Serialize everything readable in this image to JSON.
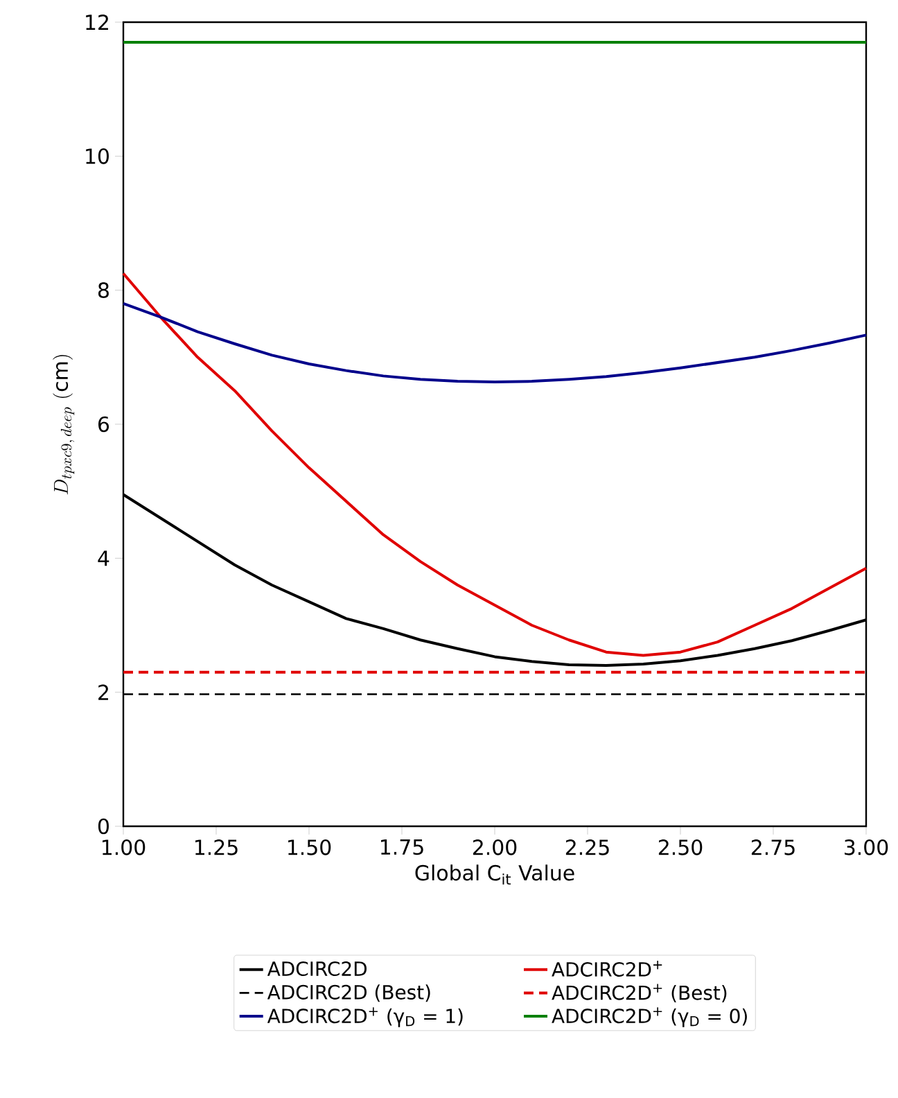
{
  "chart_data": {
    "type": "line",
    "xlabel": "Global C$_{it}$ Value",
    "ylabel": "D_{tpxc9,\\,deep}\\ \\mathrm{(cm)}",
    "xlim": [
      1.0,
      3.0
    ],
    "ylim": [
      0,
      12
    ],
    "xticks": [
      {
        "value": 1.0,
        "label": "1.00"
      },
      1.25,
      {
        "value": 1.5,
        "label": "1.50"
      },
      1.75,
      {
        "value": 2.0,
        "label": "2.00"
      },
      2.25,
      {
        "value": 2.5,
        "label": "2.50"
      },
      2.75,
      {
        "value": 3.0,
        "label": "3.00"
      }
    ],
    "yticks": [
      0,
      2,
      4,
      6,
      8,
      10,
      12
    ],
    "legend": "bottom",
    "grid": false,
    "x": [
      1.0,
      1.1,
      1.2,
      1.3,
      1.4,
      1.5,
      1.6,
      1.7,
      1.8,
      1.9,
      2.0,
      2.1,
      2.2,
      2.3,
      2.4,
      2.5,
      2.6,
      2.7,
      2.8,
      2.9,
      3.0
    ],
    "series": [
      {
        "name": "ADCIRC2D",
        "color": "#000000",
        "values": [
          4.95,
          4.6,
          4.25,
          3.9,
          3.6,
          3.35,
          3.1,
          2.95,
          2.78,
          2.65,
          2.53,
          2.46,
          2.41,
          2.4,
          2.42,
          2.47,
          2.55,
          2.65,
          2.77,
          2.92,
          3.08
        ]
      },
      {
        "name": "ADCIRC2D$^{+}$",
        "color": "#e00000",
        "values": [
          8.25,
          7.6,
          7.0,
          6.5,
          5.9,
          5.35,
          4.85,
          4.35,
          3.95,
          3.6,
          3.3,
          3.0,
          2.78,
          2.6,
          2.55,
          2.6,
          2.75,
          3.0,
          3.25,
          3.55,
          3.85
        ]
      },
      {
        "name": "ADCIRC2D (Best)",
        "color": "#000000",
        "line_style": "dashed",
        "values": [
          1.97,
          1.97,
          1.97,
          1.97,
          1.97,
          1.97,
          1.97,
          1.97,
          1.97,
          1.97,
          1.97,
          1.97,
          1.97,
          1.97,
          1.97,
          1.97,
          1.97,
          1.97,
          1.97,
          1.97,
          1.97
        ]
      },
      {
        "name": "ADCIRC2D$^{+}$ (Best)",
        "color": "#e00000",
        "line_style": "dashed",
        "values": [
          2.3,
          2.3,
          2.3,
          2.3,
          2.3,
          2.3,
          2.3,
          2.3,
          2.3,
          2.3,
          2.3,
          2.3,
          2.3,
          2.3,
          2.3,
          2.3,
          2.3,
          2.3,
          2.3,
          2.3,
          2.3
        ]
      },
      {
        "name": "ADCIRC2D$^{+}$ (γ$_{D}$ = 1)",
        "color": "#00008b",
        "values": [
          7.8,
          7.6,
          7.38,
          7.2,
          7.03,
          6.9,
          6.8,
          6.72,
          6.67,
          6.64,
          6.63,
          6.64,
          6.67,
          6.71,
          6.77,
          6.84,
          6.92,
          7.0,
          7.1,
          7.21,
          7.33
        ]
      },
      {
        "name": "ADCIRC2D$^{+}$ (γ$_{D}$ = 0)",
        "color": "#008000",
        "values": [
          11.7,
          11.7,
          11.7,
          11.7,
          11.7,
          11.7,
          11.7,
          11.7,
          11.7,
          11.7,
          11.7,
          11.7,
          11.7,
          11.7,
          11.7,
          11.7,
          11.7,
          11.7,
          11.7,
          11.7,
          11.7
        ]
      }
    ]
  }
}
